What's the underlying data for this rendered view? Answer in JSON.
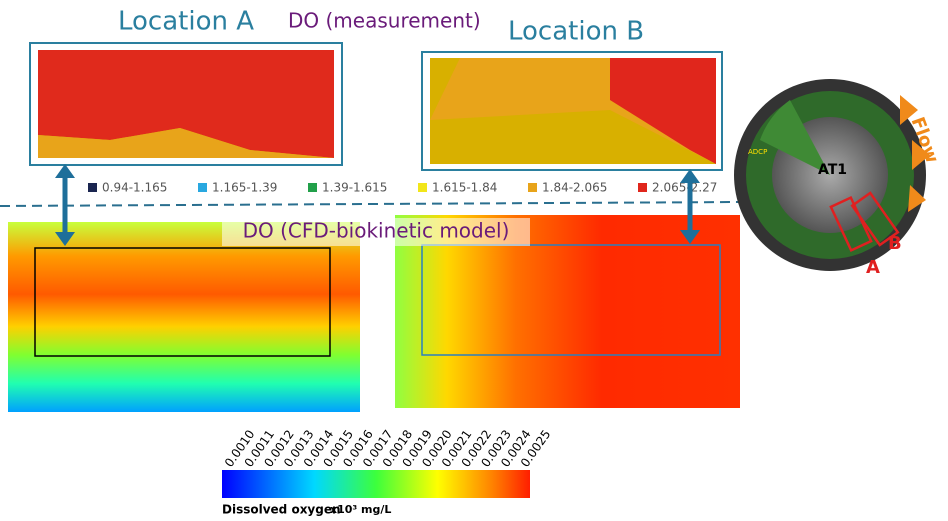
{
  "measurement": {
    "title": "DO (measurement)",
    "location_a": "Location A",
    "location_b": "Location B",
    "legend": [
      {
        "label": "0.94-1.165",
        "color": "#1a2550"
      },
      {
        "label": "1.165-1.39",
        "color": "#29a8e0"
      },
      {
        "label": "1.39-1.615",
        "color": "#22a04a"
      },
      {
        "label": "1.615-1.84",
        "color": "#f2e61a"
      },
      {
        "label": "1.84-2.065",
        "color": "#e8a41a"
      },
      {
        "label": "2.065-2.27",
        "color": "#e0261c"
      }
    ]
  },
  "model": {
    "title": "DO (CFD-biokinetic model)",
    "colorbar_ticks": [
      "0.0010",
      "0.0011",
      "0.0012",
      "0.0013",
      "0.0014",
      "0.0015",
      "0.0016",
      "0.0017",
      "0.0018",
      "0.0019",
      "0.0020",
      "0.0021",
      "0.0022",
      "0.0023",
      "0.0024",
      "0.0025"
    ],
    "colorbar_label": "Dissolved oxygen",
    "colorbar_unit": "x10³ mg/L"
  },
  "tank": {
    "name": "AT1",
    "flow": "Flow",
    "marker_a": "A",
    "marker_b": "B",
    "sensor": "ADCP"
  }
}
